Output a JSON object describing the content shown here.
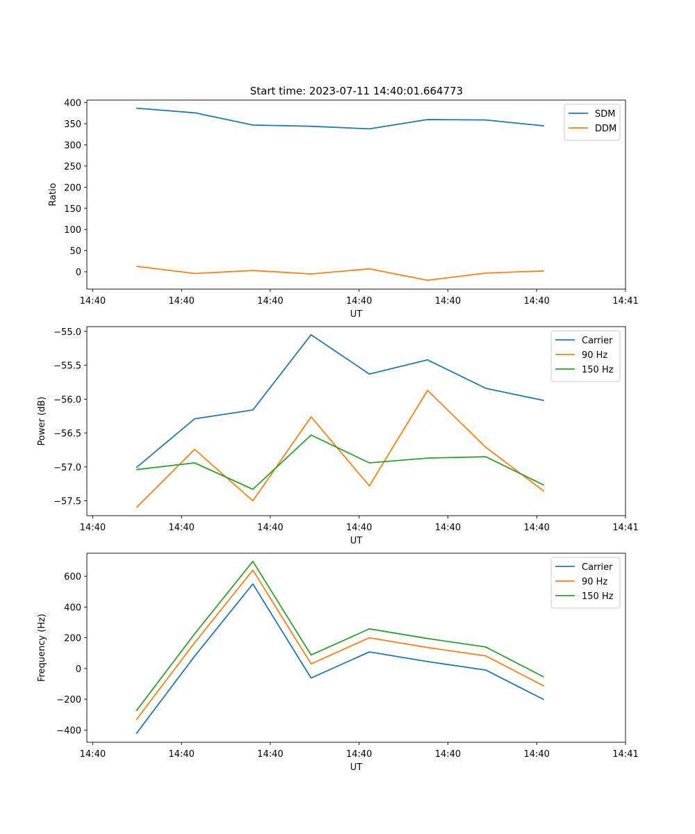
{
  "figure_title": "Start time: 2023-07-11 14:40:01.664773",
  "colors": {
    "blue": "#1f77b4",
    "orange": "#ff7f0e",
    "green": "#2ca02c"
  },
  "chart_data": [
    {
      "type": "line",
      "title": "Start time: 2023-07-11 14:40:01.664773",
      "xlabel": "UT",
      "ylabel": "Ratio",
      "xlim": [
        0,
        9.25
      ],
      "ylim": [
        -41,
        406
      ],
      "xticks": [
        0.1,
        1.625,
        3.15,
        4.675,
        6.2,
        7.725,
        9.25
      ],
      "xtick_labels": [
        "14:40",
        "14:40",
        "14:40",
        "14:40",
        "14:40",
        "14:40",
        "14:41"
      ],
      "yticks": [
        0,
        50,
        100,
        150,
        200,
        250,
        300,
        350,
        400
      ],
      "ytick_labels": [
        "0",
        "50",
        "100",
        "150",
        "200",
        "250",
        "300",
        "350",
        "400"
      ],
      "x": [
        0.85,
        1.85,
        2.85,
        3.85,
        4.85,
        5.85,
        6.85,
        7.85
      ],
      "legend_position": "top-right",
      "series": [
        {
          "name": "SDM",
          "color": "#1f77b4",
          "values": [
            387,
            376,
            347,
            344,
            338,
            360,
            359,
            345
          ]
        },
        {
          "name": "DDM",
          "color": "#ff7f0e",
          "values": [
            13,
            -4,
            3,
            -5,
            7,
            -20,
            -3,
            2
          ]
        }
      ]
    },
    {
      "type": "line",
      "title": "",
      "xlabel": "UT",
      "ylabel": "Power (dB)",
      "xlim": [
        0,
        9.25
      ],
      "ylim": [
        -57.72,
        -54.93
      ],
      "xticks": [
        0.1,
        1.625,
        3.15,
        4.675,
        6.2,
        7.725,
        9.25
      ],
      "xtick_labels": [
        "14:40",
        "14:40",
        "14:40",
        "14:40",
        "14:40",
        "14:40",
        "14:41"
      ],
      "yticks": [
        -55.0,
        -55.5,
        -56.0,
        -56.5,
        -57.0,
        -57.5
      ],
      "ytick_labels": [
        "−55.0",
        "−55.5",
        "−56.0",
        "−56.5",
        "−57.0",
        "−57.5"
      ],
      "x": [
        0.85,
        1.85,
        2.85,
        3.85,
        4.85,
        5.85,
        6.85,
        7.85
      ],
      "legend_position": "top-right",
      "series": [
        {
          "name": "Carrier",
          "color": "#1f77b4",
          "values": [
            -57.01,
            -56.29,
            -56.16,
            -55.05,
            -55.63,
            -55.42,
            -55.84,
            -56.02
          ]
        },
        {
          "name": "90 Hz",
          "color": "#ff7f0e",
          "values": [
            -57.6,
            -56.74,
            -57.5,
            -56.26,
            -57.28,
            -55.87,
            -56.71,
            -57.36
          ]
        },
        {
          "name": "150 Hz",
          "color": "#2ca02c",
          "values": [
            -57.04,
            -56.94,
            -57.33,
            -56.53,
            -56.94,
            -56.87,
            -56.85,
            -57.27
          ]
        }
      ]
    },
    {
      "type": "line",
      "title": "",
      "xlabel": "UT",
      "ylabel": "Frequency (Hz)",
      "xlim": [
        0,
        9.25
      ],
      "ylim": [
        -480,
        750
      ],
      "xticks": [
        0.1,
        1.625,
        3.15,
        4.675,
        6.2,
        7.725,
        9.25
      ],
      "xtick_labels": [
        "14:40",
        "14:40",
        "14:40",
        "14:40",
        "14:40",
        "14:40",
        "14:41"
      ],
      "yticks": [
        -400,
        -200,
        0,
        200,
        400,
        600
      ],
      "ytick_labels": [
        "−400",
        "−200",
        "0",
        "200",
        "400",
        "600"
      ],
      "x": [
        0.85,
        1.85,
        2.85,
        3.85,
        4.85,
        5.85,
        6.85,
        7.85
      ],
      "legend_position": "top-right",
      "series": [
        {
          "name": "Carrier",
          "color": "#1f77b4",
          "values": [
            -423,
            80,
            550,
            -62,
            108,
            45,
            -10,
            -203
          ]
        },
        {
          "name": "90 Hz",
          "color": "#ff7f0e",
          "values": [
            -333,
            168,
            640,
            30,
            200,
            137,
            82,
            -114
          ]
        },
        {
          "name": "150 Hz",
          "color": "#2ca02c",
          "values": [
            -275,
            225,
            697,
            88,
            258,
            195,
            140,
            -56
          ]
        }
      ]
    }
  ]
}
